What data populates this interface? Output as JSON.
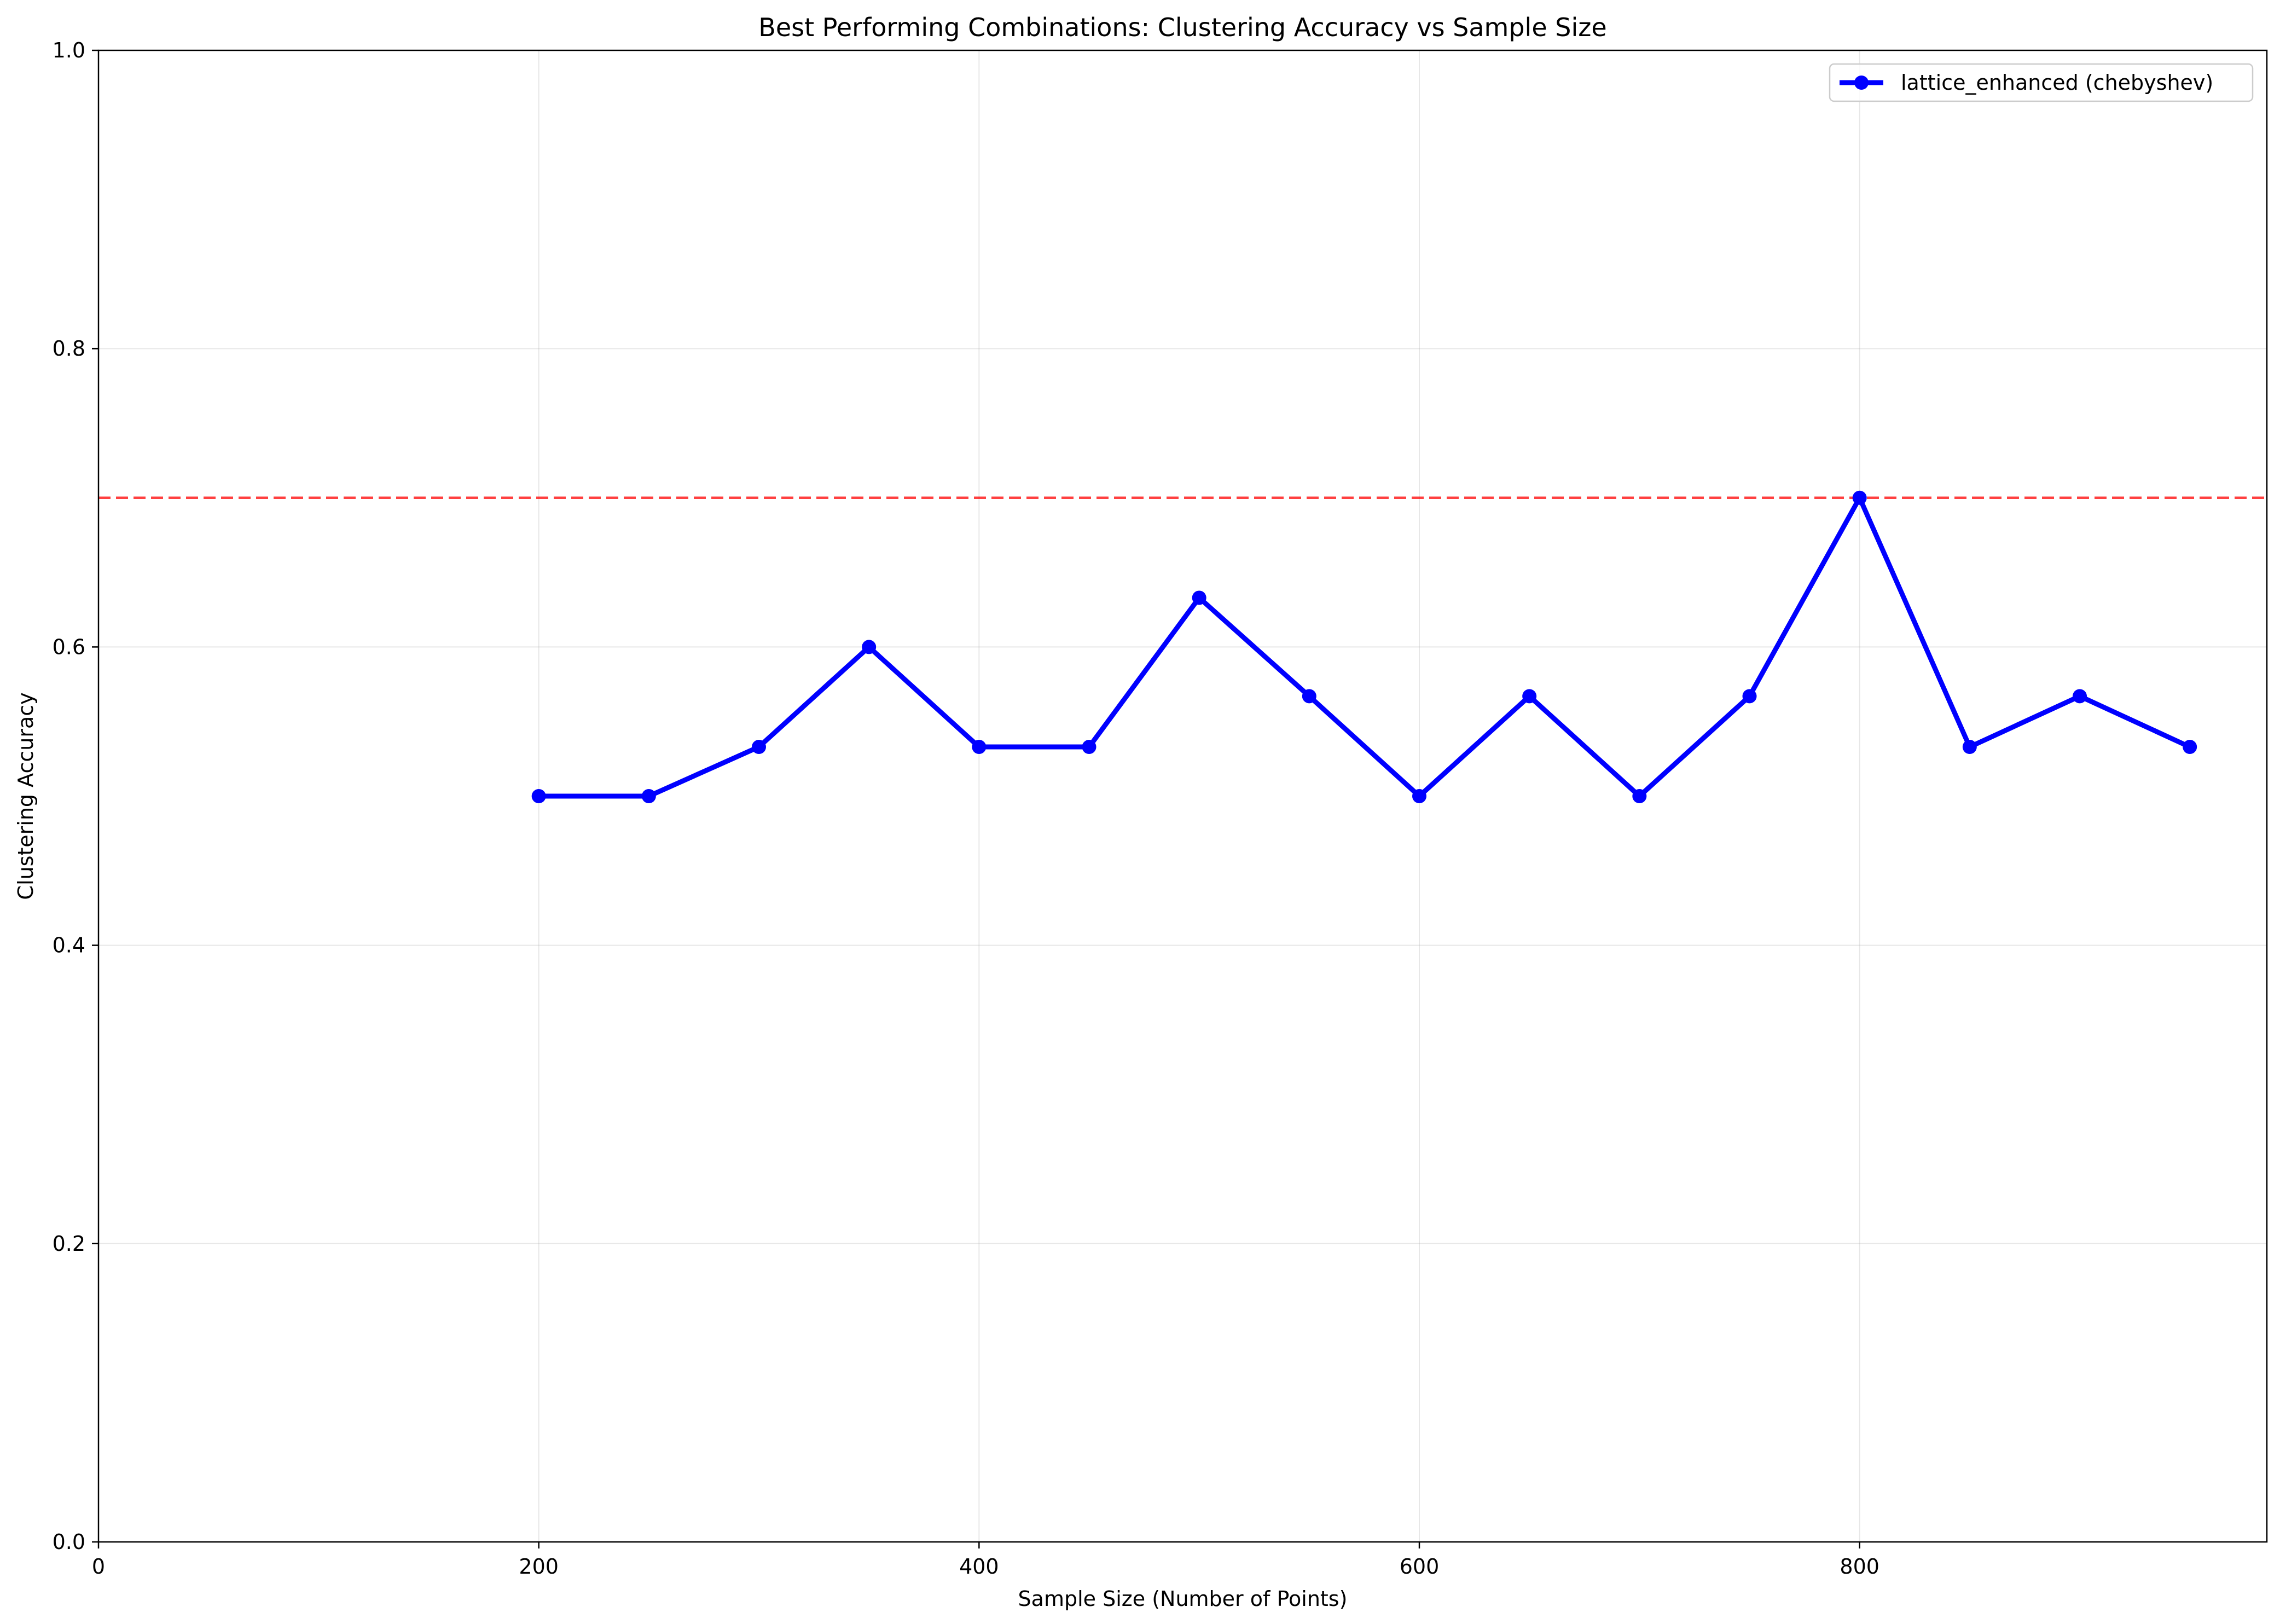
{
  "chart_data": {
    "type": "line",
    "title": "Best Performing Combinations: Clustering Accuracy vs Sample Size",
    "xlabel": "Sample Size (Number of Points)",
    "ylabel": "Clustering Accuracy",
    "xlim": [
      0,
      985
    ],
    "ylim": [
      0,
      1.0
    ],
    "x_ticks": [
      0,
      200,
      400,
      600,
      800
    ],
    "x_tick_labels": [
      "0",
      "200",
      "400",
      "600",
      "800"
    ],
    "y_ticks": [
      0,
      0.2,
      0.4,
      0.6,
      0.8,
      1.0
    ],
    "y_tick_labels": [
      "0.0",
      "0.2",
      "0.4",
      "0.6",
      "0.8",
      "1.0"
    ],
    "grid": true,
    "legend_position": "top-right",
    "series": [
      {
        "name": "lattice_enhanced (chebyshev)",
        "color": "#0000ff",
        "marker": "circle",
        "x": [
          200,
          250,
          300,
          350,
          400,
          450,
          500,
          550,
          600,
          650,
          700,
          750,
          800,
          850,
          900,
          950
        ],
        "y": [
          0.5,
          0.5,
          0.533,
          0.6,
          0.533,
          0.533,
          0.633,
          0.567,
          0.5,
          0.567,
          0.5,
          0.567,
          0.7,
          0.533,
          0.567,
          0.533
        ]
      }
    ],
    "reference_lines": [
      {
        "orientation": "horizontal",
        "y": 0.7,
        "color": "#ff0000",
        "style": "dashed"
      }
    ]
  }
}
